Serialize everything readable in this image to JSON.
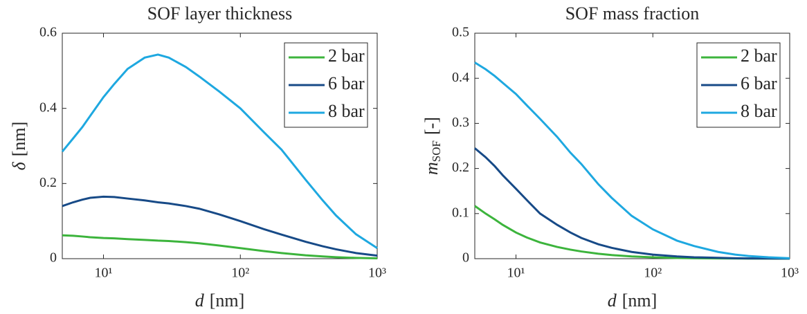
{
  "chart_data": [
    {
      "type": "line",
      "title": "SOF layer thickness",
      "xlabel": "d",
      "xlabel_unit": "[nm]",
      "ylabel": "δ",
      "ylabel_unit": "[nm]",
      "xscale": "log",
      "legend": "upper right",
      "x": [
        5,
        6,
        7,
        8,
        10,
        12,
        15,
        20,
        25,
        30,
        40,
        50,
        70,
        100,
        150,
        200,
        300,
        400,
        500,
        700,
        1000
      ],
      "xlim": [
        5,
        1000
      ],
      "xticks": [
        {
          "value": 10,
          "label": "10¹"
        },
        {
          "value": 100,
          "label": "10²"
        },
        {
          "value": 1000,
          "label": "10³"
        }
      ],
      "ylim": [
        0,
        0.6
      ],
      "yticks": [
        0,
        0.2,
        0.4,
        0.6
      ],
      "series": [
        {
          "name": "2 bar",
          "color": "#3cb43c",
          "values": [
            0.062,
            0.061,
            0.059,
            0.057,
            0.055,
            0.054,
            0.052,
            0.05,
            0.048,
            0.047,
            0.044,
            0.041,
            0.035,
            0.028,
            0.02,
            0.015,
            0.009,
            0.006,
            0.004,
            0.002,
            0.001
          ]
        },
        {
          "name": "6 bar",
          "color": "#174a87",
          "values": [
            0.14,
            0.15,
            0.157,
            0.162,
            0.165,
            0.164,
            0.16,
            0.155,
            0.15,
            0.147,
            0.14,
            0.133,
            0.118,
            0.1,
            0.078,
            0.064,
            0.045,
            0.033,
            0.025,
            0.015,
            0.008
          ]
        },
        {
          "name": "8 bar",
          "color": "#1ea8e0",
          "values": [
            0.285,
            0.32,
            0.35,
            0.38,
            0.43,
            0.465,
            0.505,
            0.535,
            0.543,
            0.535,
            0.51,
            0.485,
            0.445,
            0.4,
            0.335,
            0.29,
            0.21,
            0.155,
            0.115,
            0.065,
            0.028
          ]
        }
      ]
    },
    {
      "type": "line",
      "title": "SOF mass fraction",
      "xlabel": "d",
      "xlabel_unit": "[nm]",
      "ylabel": "m",
      "ylabel_subscript": "SOF",
      "ylabel_unit": "[-]",
      "xscale": "log",
      "legend": "upper right",
      "x": [
        5,
        6,
        7,
        8,
        10,
        12,
        15,
        20,
        25,
        30,
        40,
        50,
        70,
        100,
        150,
        200,
        300,
        400,
        500,
        700,
        1000
      ],
      "xlim": [
        5,
        1000
      ],
      "xticks": [
        {
          "value": 10,
          "label": "10¹"
        },
        {
          "value": 100,
          "label": "10²"
        },
        {
          "value": 1000,
          "label": "10³"
        }
      ],
      "ylim": [
        0,
        0.5
      ],
      "yticks": [
        0,
        0.1,
        0.2,
        0.3,
        0.4,
        0.5
      ],
      "series": [
        {
          "name": "2 bar",
          "color": "#3cb43c",
          "values": [
            0.117,
            0.1,
            0.087,
            0.075,
            0.058,
            0.047,
            0.036,
            0.026,
            0.02,
            0.016,
            0.011,
            0.008,
            0.005,
            0.003,
            0.0015,
            0.001,
            0.0005,
            0.0003,
            0.0002,
            0.0001,
            0
          ]
        },
        {
          "name": "6 bar",
          "color": "#174a87",
          "values": [
            0.245,
            0.225,
            0.205,
            0.185,
            0.155,
            0.13,
            0.1,
            0.075,
            0.058,
            0.046,
            0.032,
            0.024,
            0.015,
            0.009,
            0.005,
            0.003,
            0.002,
            0.001,
            0.0006,
            0.0003,
            0.0001
          ]
        },
        {
          "name": "8 bar",
          "color": "#1ea8e0",
          "values": [
            0.435,
            0.42,
            0.405,
            0.39,
            0.365,
            0.34,
            0.31,
            0.27,
            0.235,
            0.21,
            0.165,
            0.135,
            0.095,
            0.065,
            0.04,
            0.028,
            0.015,
            0.009,
            0.006,
            0.003,
            0.001
          ]
        }
      ]
    }
  ]
}
